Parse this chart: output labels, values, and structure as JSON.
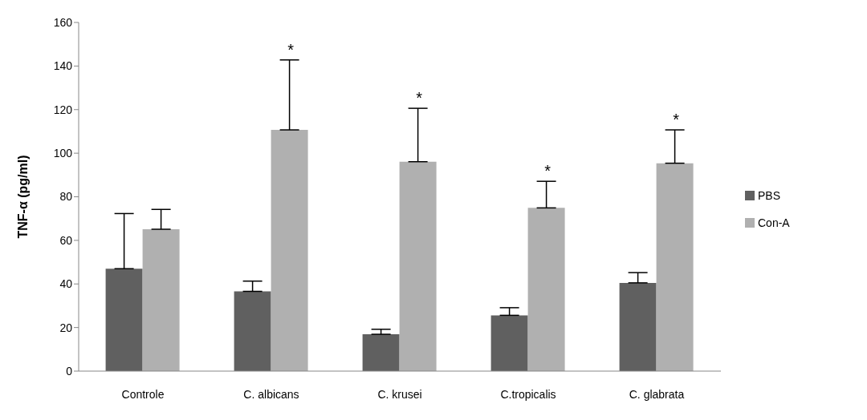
{
  "chart_data": {
    "type": "bar",
    "ylabel": "TNF-α (pg/ml)",
    "categories": [
      "Controle",
      "C. albicans",
      "C. krusei",
      "C.tropicalis",
      "C. glabrata"
    ],
    "series": [
      {
        "name": "PBS",
        "color": "#606060",
        "values": [
          47,
          36.6,
          16.9,
          25.6,
          40.5
        ],
        "errors": [
          [
            47,
            72.3
          ],
          [
            36.6,
            41.3
          ],
          [
            16.9,
            19.2
          ],
          [
            25.6,
            29.1
          ],
          [
            40.5,
            45.2
          ]
        ]
      },
      {
        "name": "Con-A",
        "color": "#b0b0b0",
        "values": [
          65.1,
          110.7,
          96.1,
          74.9,
          95.4
        ],
        "errors": [
          [
            65.1,
            74.2
          ],
          [
            110.7,
            142.8
          ],
          [
            96.1,
            120.6
          ],
          [
            74.9,
            87.1
          ],
          [
            95.4,
            110.7
          ]
        ]
      }
    ],
    "annotations": [
      "*",
      "*",
      "*",
      "*"
    ],
    "ylim": [
      0,
      160
    ],
    "yticks": [
      0,
      20,
      40,
      60,
      80,
      100,
      120,
      140,
      160
    ],
    "grid": false,
    "legend": "right"
  }
}
